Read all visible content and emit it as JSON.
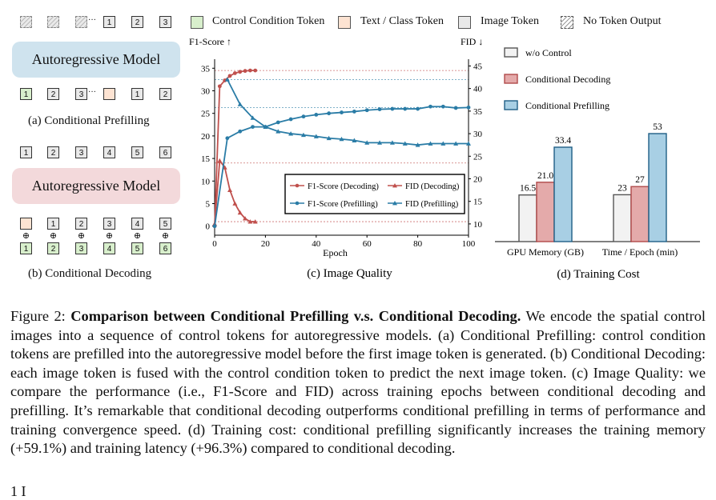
{
  "legend": {
    "control": "Control Condition Token",
    "text": "Text / Class Token",
    "image": "Image Token",
    "none": "No Token Output"
  },
  "colors": {
    "control_token": "#d8efcc",
    "text_token": "#fde3d2",
    "image_token": "#e9e9e9",
    "model_prefill": "#cfe3ee",
    "model_decode": "#f3d9db",
    "decoding_series": "#c0504d",
    "prefilling_series": "#2a7ca6",
    "bar_wo": "#f2f2f2",
    "bar_decoding": "#e4aaaa",
    "bar_prefilling": "#a8cfe4"
  },
  "panel_a": {
    "model_label": "Autoregressive Model",
    "top_tokens": [
      "1",
      "2",
      "3"
    ],
    "bottom_control": [
      "1",
      "2",
      "3"
    ],
    "bottom_image": [
      "1",
      "2"
    ],
    "ellipsis": "···",
    "caption": "(a) Conditional Prefilling"
  },
  "panel_b": {
    "model_label": "Autoregressive Model",
    "top_tokens": [
      "1",
      "2",
      "3",
      "4",
      "5",
      "6"
    ],
    "image_tokens": [
      "1",
      "2",
      "3",
      "4",
      "5"
    ],
    "control_tokens": [
      "1",
      "2",
      "3",
      "4",
      "5",
      "6"
    ],
    "plus": "⊕",
    "caption": "(b) Conditional Decoding"
  },
  "chart_data": [
    {
      "type": "line",
      "caption": "(c) Image Quality",
      "xlabel": "Epoch",
      "ylabel_left": "F1-Score ↑",
      "ylabel_right": "FID ↓",
      "xlim": [
        0,
        100
      ],
      "xticks": [
        0,
        20,
        40,
        60,
        80,
        100
      ],
      "ylim_left": [
        -2,
        37
      ],
      "yticks_left": [
        0,
        5,
        10,
        15,
        20,
        25,
        30,
        35
      ],
      "ylim_right": [
        7.5,
        46.5
      ],
      "yticks_right": [
        10,
        15,
        20,
        25,
        30,
        35,
        40,
        45
      ],
      "legend_position": "center-right",
      "series": [
        {
          "name": "F1-Score (Decoding)",
          "axis": "left",
          "marker": "circle",
          "x": [
            0,
            2,
            4,
            6,
            8,
            10,
            12,
            14,
            16
          ],
          "y": [
            0,
            31,
            32.3,
            33.3,
            33.9,
            34.2,
            34.4,
            34.5,
            34.5
          ]
        },
        {
          "name": "FID (Decoding)",
          "axis": "right",
          "marker": "triangle",
          "x": [
            0,
            2,
            4,
            6,
            8,
            10,
            12,
            14,
            16
          ],
          "y": [
            10,
            24,
            22.5,
            17.5,
            14.5,
            12.5,
            11.2,
            10.5,
            10.5
          ]
        },
        {
          "name": "F1-Score (Prefilling)",
          "axis": "left",
          "marker": "circle",
          "x": [
            0,
            5,
            10,
            15,
            20,
            25,
            30,
            35,
            40,
            45,
            50,
            55,
            60,
            65,
            70,
            75,
            80,
            85,
            90,
            95,
            100
          ],
          "y": [
            0,
            19.5,
            21,
            22,
            22,
            23,
            23.7,
            24.3,
            24.7,
            25,
            25.2,
            25.4,
            25.7,
            25.9,
            26,
            26,
            26,
            26.5,
            26.5,
            26.2,
            26.3
          ]
        },
        {
          "name": "FID (Prefilling)",
          "axis": "right",
          "marker": "triangle",
          "x": [
            5,
            10,
            15,
            20,
            25,
            30,
            35,
            40,
            45,
            50,
            55,
            60,
            65,
            70,
            75,
            80,
            85,
            90,
            95,
            100
          ],
          "y": [
            42,
            36.5,
            33.5,
            31.5,
            30.5,
            30,
            29.7,
            29.4,
            29,
            28.8,
            28.5,
            28,
            28,
            28,
            27.8,
            27.5,
            27.8,
            27.8,
            27.8,
            27.8
          ]
        }
      ]
    },
    {
      "type": "bar",
      "caption": "(d) Training Cost",
      "categories": [
        "GPU Memory (GB)",
        "Time / Epoch (min)"
      ],
      "series": [
        {
          "name": "w/o Control",
          "values": [
            16.5,
            23
          ],
          "labels": [
            "16.5",
            "23"
          ]
        },
        {
          "name": "Conditional Decoding",
          "values": [
            21.0,
            27
          ],
          "labels": [
            "21.0",
            "27"
          ]
        },
        {
          "name": "Conditional Prefilling",
          "values": [
            33.4,
            53
          ],
          "labels": [
            "33.4",
            "53"
          ]
        }
      ],
      "legend_position": "top-left"
    }
  ],
  "caption": {
    "figure_label": "Figure 2:",
    "title": "Comparison between Conditional Prefilling v.s. Conditional Decoding.",
    "body": " We encode the spatial control images into a sequence of control tokens for autoregressive models. (a) Conditional Prefilling: control condition tokens are prefilled into the autoregressive model before the first image token is generated. (b) Conditional Decoding: each image token is fused with the control condition token to predict the next image token. (c) Image Quality: we compare the performance (i.e., F1-Score and FID) across training epochs between conditional decoding and prefilling. It’s remarkable that conditional decoding outperforms conditional prefilling in terms of performance and training convergence speed. (d) Training cost: conditional prefilling significantly increases the training memory (+59.1%) and training latency (+96.3%) compared to conditional decoding."
  },
  "footer_fragment": "1   I"
}
